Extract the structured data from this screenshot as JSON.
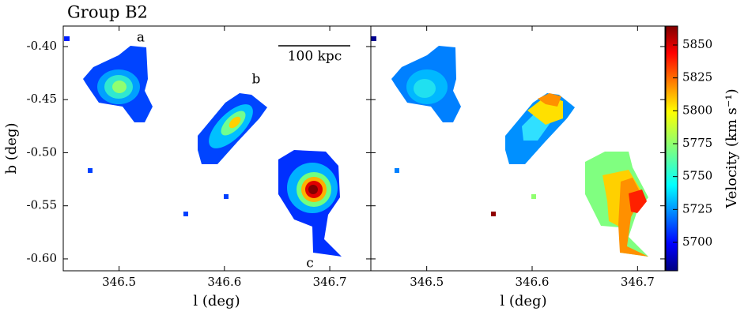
{
  "chart_data": [
    {
      "type": "image",
      "title": "Group B2",
      "xlabel": "l  (deg)",
      "ylabel": "b (deg)",
      "xlim": [
        346.447,
        346.739
      ],
      "ylim": [
        -0.6112,
        -0.3807
      ],
      "xticks": [
        346.5,
        346.6,
        346.7
      ],
      "yticks": [
        {
          "value": -0.4,
          "label": "-0.40"
        },
        {
          "value": -0.45,
          "label": "-0.45"
        },
        {
          "value": -0.5,
          "label": "-0.50"
        },
        {
          "value": -0.55,
          "label": "-0.55"
        },
        {
          "value": -0.6,
          "label": "-0.60"
        }
      ],
      "annotations": [
        "a",
        "b",
        "c"
      ],
      "scalebar": "100 kpc"
    },
    {
      "type": "image",
      "xlabel": "l  (deg)",
      "xlim": [
        346.447,
        346.726
      ],
      "ylim": [
        -0.6112,
        -0.3807
      ],
      "xticks": [
        346.5,
        346.6,
        346.7
      ],
      "yticks": [
        -0.4,
        -0.45,
        -0.5,
        -0.55,
        -0.6
      ],
      "show_ytick_labels": false,
      "colorbar": {
        "label": "Velocity (km s⁻¹)",
        "lim": [
          5678.4,
          5864.4
        ],
        "ticks": [
          5700,
          5725,
          5750,
          5775,
          5800,
          5825,
          5850
        ]
      }
    }
  ]
}
